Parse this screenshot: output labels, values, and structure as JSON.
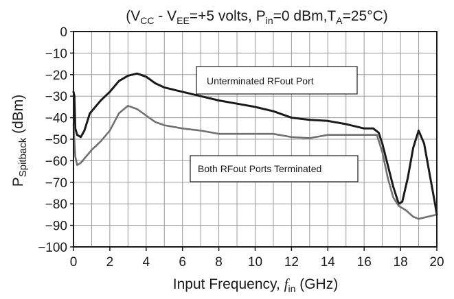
{
  "chart_data": {
    "type": "line",
    "title": {
      "open": "(V",
      "vcc_sub": "CC",
      "minus": " - V",
      "vee_sub": "EE",
      "eq": "=+5 volts, P",
      "pin_sub": "in",
      "pin_val": "=0 dBm,T",
      "ta_sub": "A",
      "ta_val": "=25°C)"
    },
    "xlabel": {
      "text": "Input Frequency, ",
      "var": "f",
      "sub": "in",
      "unit": " (GHz)"
    },
    "ylabel": {
      "main": "P",
      "sub": "Spitback",
      "unit": " (dBm)"
    },
    "xlim": [
      0,
      20
    ],
    "ylim": [
      -100,
      0
    ],
    "x_ticks": [
      0,
      2,
      4,
      6,
      8,
      10,
      12,
      14,
      16,
      18,
      20
    ],
    "y_ticks": [
      0,
      -10,
      -20,
      -30,
      -40,
      -50,
      -60,
      -70,
      -80,
      -90,
      -100
    ],
    "x_tick_labels": [
      "0",
      "2",
      "4",
      "6",
      "8",
      "10",
      "12",
      "14",
      "16",
      "18",
      "20"
    ],
    "y_tick_labels": [
      "0",
      "−10",
      "−20",
      "−30",
      "−40",
      "−50",
      "−60",
      "−70",
      "−80",
      "−90",
      "−100"
    ],
    "grid": true,
    "series": [
      {
        "name": "Unterminated RFout Port",
        "color": "#1a1a1a",
        "points": [
          [
            0.0,
            -28
          ],
          [
            0.05,
            -30
          ],
          [
            0.1,
            -45
          ],
          [
            0.2,
            -48
          ],
          [
            0.4,
            -49
          ],
          [
            0.6,
            -46
          ],
          [
            0.9,
            -38
          ],
          [
            1.5,
            -32
          ],
          [
            2.0,
            -28
          ],
          [
            2.5,
            -23
          ],
          [
            3.0,
            -20.5
          ],
          [
            3.5,
            -19.5
          ],
          [
            4.0,
            -21
          ],
          [
            4.5,
            -24
          ],
          [
            5.0,
            -26
          ],
          [
            6.0,
            -28
          ],
          [
            7.0,
            -30
          ],
          [
            8.0,
            -32
          ],
          [
            9.0,
            -33.5
          ],
          [
            10.0,
            -35
          ],
          [
            11.0,
            -37
          ],
          [
            12.0,
            -40
          ],
          [
            13.0,
            -41
          ],
          [
            14.0,
            -41.5
          ],
          [
            15.0,
            -43
          ],
          [
            16.0,
            -45
          ],
          [
            16.5,
            -45
          ],
          [
            16.8,
            -47
          ],
          [
            17.0,
            -52
          ],
          [
            17.3,
            -62
          ],
          [
            17.6,
            -72
          ],
          [
            17.9,
            -80
          ],
          [
            18.1,
            -79
          ],
          [
            18.4,
            -68
          ],
          [
            18.7,
            -54
          ],
          [
            19.0,
            -46
          ],
          [
            19.3,
            -52
          ],
          [
            19.6,
            -66
          ],
          [
            19.9,
            -80
          ],
          [
            20.0,
            -85
          ]
        ]
      },
      {
        "name": "Both RFout Ports Terminated",
        "color": "#707070",
        "points": [
          [
            0.0,
            -43
          ],
          [
            0.1,
            -58
          ],
          [
            0.2,
            -62
          ],
          [
            0.4,
            -61
          ],
          [
            0.7,
            -58
          ],
          [
            1.0,
            -55
          ],
          [
            1.5,
            -51
          ],
          [
            2.0,
            -46
          ],
          [
            2.5,
            -38
          ],
          [
            3.0,
            -34.5
          ],
          [
            3.5,
            -36
          ],
          [
            4.0,
            -39
          ],
          [
            4.5,
            -42
          ],
          [
            5.0,
            -43.5
          ],
          [
            6.0,
            -45
          ],
          [
            7.0,
            -46
          ],
          [
            8.0,
            -47.5
          ],
          [
            9.0,
            -47.5
          ],
          [
            10.0,
            -47.5
          ],
          [
            11.0,
            -47.5
          ],
          [
            12.0,
            -49
          ],
          [
            13.0,
            -49.5
          ],
          [
            14.0,
            -48
          ],
          [
            15.0,
            -48
          ],
          [
            16.0,
            -48
          ],
          [
            16.7,
            -48
          ],
          [
            17.0,
            -56
          ],
          [
            17.3,
            -68
          ],
          [
            17.6,
            -77
          ],
          [
            17.9,
            -81
          ],
          [
            18.3,
            -83
          ],
          [
            18.7,
            -86
          ],
          [
            19.0,
            -87
          ],
          [
            19.5,
            -86
          ],
          [
            20.0,
            -85
          ]
        ]
      }
    ],
    "annotations": [
      {
        "text": "Unterminated RFout Port",
        "series": 0
      },
      {
        "text": "Both RFout Ports Terminated",
        "series": 1
      }
    ]
  }
}
